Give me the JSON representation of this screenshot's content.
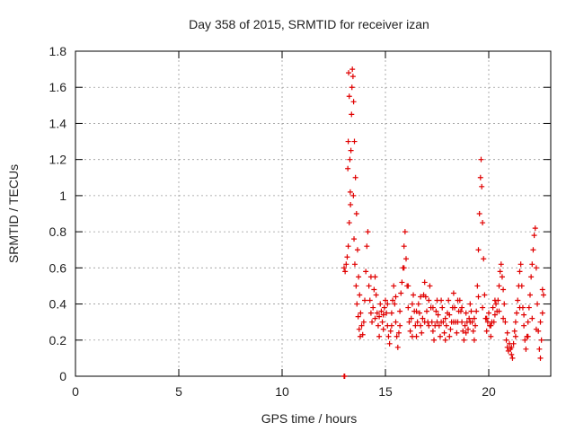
{
  "chart_data": {
    "type": "scatter",
    "title": "Day 358 of 2015, SRMTID for receiver izan",
    "xlabel": "GPS time / hours",
    "ylabel": "SRMTID / TECUs",
    "xlim": [
      0,
      23
    ],
    "ylim": [
      0,
      1.8
    ],
    "xticks": [
      0,
      5,
      10,
      15,
      20
    ],
    "xtick_labels": [
      "0",
      "5",
      "10",
      "15",
      "20"
    ],
    "yticks": [
      0,
      0.2,
      0.4,
      0.6,
      0.8,
      1,
      1.2,
      1.4,
      1.6,
      1.8
    ],
    "ytick_labels": [
      "0",
      "0.2",
      "0.4",
      "0.6",
      "0.8",
      "1",
      "1.2",
      "1.4",
      "1.6",
      "1.8"
    ],
    "grid": true,
    "marker": "plus",
    "marker_color": "#e00000",
    "series": [
      {
        "name": "SRMTID",
        "points": [
          [
            13.0,
            0.0
          ],
          [
            13.03,
            0.0
          ],
          [
            13.0,
            0.6
          ],
          [
            13.05,
            0.58
          ],
          [
            13.1,
            0.62
          ],
          [
            13.15,
            0.66
          ],
          [
            13.2,
            0.72
          ],
          [
            13.25,
            0.85
          ],
          [
            13.3,
            1.02
          ],
          [
            13.33,
            1.25
          ],
          [
            13.36,
            1.45
          ],
          [
            13.38,
            1.6
          ],
          [
            13.4,
            1.7
          ],
          [
            13.43,
            1.66
          ],
          [
            13.46,
            1.52
          ],
          [
            13.5,
            1.3
          ],
          [
            13.55,
            1.1
          ],
          [
            13.6,
            0.9
          ],
          [
            13.65,
            0.7
          ],
          [
            13.7,
            0.55
          ],
          [
            13.75,
            0.45
          ],
          [
            13.8,
            0.35
          ],
          [
            13.85,
            0.28
          ],
          [
            13.9,
            0.23
          ],
          [
            13.95,
            0.3
          ],
          [
            14.0,
            0.42
          ],
          [
            14.05,
            0.58
          ],
          [
            14.1,
            0.72
          ],
          [
            14.15,
            0.8
          ],
          [
            13.22,
            1.68
          ],
          [
            13.25,
            1.55
          ],
          [
            13.28,
            1.2
          ],
          [
            13.31,
            0.95
          ],
          [
            13.18,
            1.15
          ],
          [
            13.2,
            1.3
          ],
          [
            13.45,
            1.0
          ],
          [
            13.48,
            0.76
          ],
          [
            13.52,
            0.62
          ],
          [
            13.58,
            0.5
          ],
          [
            13.62,
            0.4
          ],
          [
            13.68,
            0.33
          ],
          [
            13.73,
            0.26
          ],
          [
            13.78,
            0.22
          ],
          [
            14.2,
            0.5
          ],
          [
            14.25,
            0.42
          ],
          [
            14.3,
            0.35
          ],
          [
            14.35,
            0.3
          ],
          [
            14.4,
            0.38
          ],
          [
            14.45,
            0.48
          ],
          [
            14.5,
            0.55
          ],
          [
            14.55,
            0.45
          ],
          [
            14.6,
            0.35
          ],
          [
            14.65,
            0.28
          ],
          [
            14.7,
            0.33
          ],
          [
            14.75,
            0.4
          ],
          [
            14.8,
            0.36
          ],
          [
            14.85,
            0.3
          ],
          [
            14.9,
            0.34
          ],
          [
            14.95,
            0.38
          ],
          [
            15.0,
            0.42
          ],
          [
            15.05,
            0.35
          ],
          [
            15.1,
            0.28
          ],
          [
            15.15,
            0.22
          ],
          [
            15.2,
            0.18
          ],
          [
            15.25,
            0.25
          ],
          [
            15.3,
            0.35
          ],
          [
            15.35,
            0.42
          ],
          [
            15.4,
            0.5
          ],
          [
            15.45,
            0.4
          ],
          [
            15.5,
            0.3
          ],
          [
            15.55,
            0.22
          ],
          [
            15.6,
            0.16
          ],
          [
            15.65,
            0.24
          ],
          [
            15.7,
            0.36
          ],
          [
            15.75,
            0.46
          ],
          [
            15.8,
            0.52
          ],
          [
            15.85,
            0.6
          ],
          [
            15.9,
            0.72
          ],
          [
            15.95,
            0.8
          ],
          [
            16.0,
            0.65
          ],
          [
            16.05,
            0.5
          ],
          [
            16.1,
            0.38
          ],
          [
            16.15,
            0.3
          ],
          [
            16.2,
            0.25
          ],
          [
            16.25,
            0.32
          ],
          [
            16.3,
            0.4
          ],
          [
            16.35,
            0.45
          ],
          [
            16.4,
            0.36
          ],
          [
            16.45,
            0.28
          ],
          [
            16.5,
            0.22
          ],
          [
            16.55,
            0.3
          ],
          [
            16.6,
            0.4
          ],
          [
            16.65,
            0.35
          ],
          [
            16.7,
            0.28
          ],
          [
            16.75,
            0.24
          ],
          [
            16.8,
            0.32
          ],
          [
            16.85,
            0.45
          ],
          [
            16.9,
            0.52
          ],
          [
            16.95,
            0.44
          ],
          [
            17.0,
            0.36
          ],
          [
            17.05,
            0.3
          ],
          [
            17.1,
            0.42
          ],
          [
            17.15,
            0.5
          ],
          [
            17.2,
            0.38
          ],
          [
            17.25,
            0.3
          ],
          [
            17.3,
            0.25
          ],
          [
            17.35,
            0.2
          ],
          [
            17.4,
            0.28
          ],
          [
            17.45,
            0.36
          ],
          [
            17.5,
            0.42
          ],
          [
            17.55,
            0.34
          ],
          [
            17.6,
            0.28
          ],
          [
            17.65,
            0.22
          ],
          [
            17.7,
            0.3
          ],
          [
            17.75,
            0.38
          ],
          [
            17.8,
            0.3
          ],
          [
            17.85,
            0.24
          ],
          [
            17.9,
            0.2
          ],
          [
            17.95,
            0.28
          ],
          [
            18.0,
            0.35
          ],
          [
            18.05,
            0.42
          ],
          [
            18.1,
            0.34
          ],
          [
            18.15,
            0.26
          ],
          [
            18.2,
            0.3
          ],
          [
            18.25,
            0.38
          ],
          [
            18.3,
            0.46
          ],
          [
            18.35,
            0.38
          ],
          [
            18.4,
            0.3
          ],
          [
            18.45,
            0.24
          ],
          [
            18.5,
            0.3
          ],
          [
            18.55,
            0.36
          ],
          [
            18.6,
            0.42
          ],
          [
            18.65,
            0.36
          ],
          [
            18.7,
            0.3
          ],
          [
            18.75,
            0.25
          ],
          [
            18.8,
            0.2
          ],
          [
            18.85,
            0.28
          ],
          [
            18.9,
            0.35
          ],
          [
            18.95,
            0.3
          ],
          [
            19.0,
            0.26
          ],
          [
            19.05,
            0.32
          ],
          [
            19.1,
            0.4
          ],
          [
            19.15,
            0.36
          ],
          [
            19.2,
            0.3
          ],
          [
            19.25,
            0.25
          ],
          [
            19.3,
            0.2
          ],
          [
            19.35,
            0.28
          ],
          [
            19.4,
            0.36
          ],
          [
            19.45,
            0.5
          ],
          [
            19.5,
            0.7
          ],
          [
            19.55,
            0.9
          ],
          [
            19.6,
            1.1
          ],
          [
            19.63,
            1.2
          ],
          [
            19.66,
            1.05
          ],
          [
            19.7,
            0.85
          ],
          [
            19.75,
            0.65
          ],
          [
            19.8,
            0.45
          ],
          [
            19.85,
            0.32
          ],
          [
            19.9,
            0.25
          ],
          [
            19.95,
            0.3
          ],
          [
            20.0,
            0.35
          ],
          [
            20.05,
            0.28
          ],
          [
            20.1,
            0.22
          ],
          [
            20.15,
            0.3
          ],
          [
            20.2,
            0.38
          ],
          [
            20.25,
            0.3
          ],
          [
            20.3,
            0.34
          ],
          [
            20.35,
            0.4
          ],
          [
            20.4,
            0.36
          ],
          [
            20.45,
            0.42
          ],
          [
            20.5,
            0.5
          ],
          [
            20.55,
            0.58
          ],
          [
            20.6,
            0.62
          ],
          [
            20.65,
            0.55
          ],
          [
            20.7,
            0.48
          ],
          [
            20.75,
            0.4
          ],
          [
            20.8,
            0.3
          ],
          [
            20.85,
            0.2
          ],
          [
            20.9,
            0.16
          ],
          [
            20.95,
            0.14
          ],
          [
            21.0,
            0.18
          ],
          [
            21.05,
            0.15
          ],
          [
            21.1,
            0.12
          ],
          [
            21.15,
            0.1
          ],
          [
            21.2,
            0.18
          ],
          [
            21.25,
            0.25
          ],
          [
            21.3,
            0.3
          ],
          [
            21.35,
            0.35
          ],
          [
            21.4,
            0.42
          ],
          [
            21.45,
            0.5
          ],
          [
            21.5,
            0.58
          ],
          [
            21.55,
            0.62
          ],
          [
            21.6,
            0.5
          ],
          [
            21.65,
            0.38
          ],
          [
            21.7,
            0.28
          ],
          [
            21.75,
            0.2
          ],
          [
            21.8,
            0.15
          ],
          [
            21.85,
            0.22
          ],
          [
            21.9,
            0.3
          ],
          [
            21.95,
            0.38
          ],
          [
            22.0,
            0.45
          ],
          [
            22.05,
            0.55
          ],
          [
            22.1,
            0.62
          ],
          [
            22.15,
            0.7
          ],
          [
            22.2,
            0.78
          ],
          [
            22.25,
            0.82
          ],
          [
            22.3,
            0.6
          ],
          [
            22.35,
            0.4
          ],
          [
            22.4,
            0.25
          ],
          [
            22.45,
            0.15
          ],
          [
            22.5,
            0.1
          ],
          [
            22.55,
            0.2
          ],
          [
            22.6,
            0.35
          ],
          [
            22.65,
            0.45
          ],
          [
            14.3,
            0.55
          ],
          [
            14.5,
            0.32
          ],
          [
            14.7,
            0.22
          ],
          [
            14.9,
            0.26
          ],
          [
            15.1,
            0.4
          ],
          [
            15.3,
            0.28
          ],
          [
            15.5,
            0.44
          ],
          [
            15.7,
            0.28
          ],
          [
            15.9,
            0.6
          ],
          [
            16.1,
            0.5
          ],
          [
            16.3,
            0.22
          ],
          [
            16.5,
            0.36
          ],
          [
            16.7,
            0.44
          ],
          [
            16.9,
            0.3
          ],
          [
            17.1,
            0.28
          ],
          [
            17.3,
            0.38
          ],
          [
            17.5,
            0.3
          ],
          [
            17.7,
            0.42
          ],
          [
            17.9,
            0.32
          ],
          [
            18.1,
            0.22
          ],
          [
            18.3,
            0.3
          ],
          [
            18.5,
            0.42
          ],
          [
            18.7,
            0.38
          ],
          [
            18.9,
            0.24
          ],
          [
            19.1,
            0.3
          ],
          [
            19.3,
            0.32
          ],
          [
            19.5,
            0.44
          ],
          [
            19.7,
            0.38
          ],
          [
            19.9,
            0.32
          ],
          [
            20.1,
            0.28
          ],
          [
            20.3,
            0.42
          ],
          [
            20.5,
            0.36
          ],
          [
            20.7,
            0.32
          ],
          [
            20.9,
            0.24
          ],
          [
            21.1,
            0.16
          ],
          [
            21.3,
            0.22
          ],
          [
            21.5,
            0.38
          ],
          [
            21.7,
            0.34
          ],
          [
            21.9,
            0.22
          ],
          [
            22.1,
            0.32
          ],
          [
            22.3,
            0.26
          ],
          [
            22.5,
            0.3
          ],
          [
            22.6,
            0.48
          ]
        ]
      }
    ]
  }
}
